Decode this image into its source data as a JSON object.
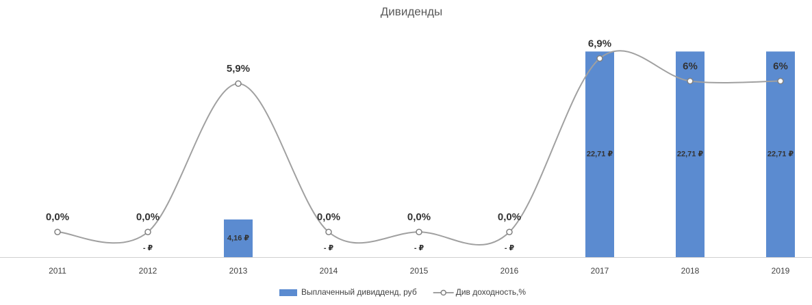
{
  "chart_data": {
    "type": "bar",
    "title": "Дивиденды",
    "categories": [
      "2011",
      "2012",
      "2013",
      "2014",
      "2015",
      "2016",
      "2017",
      "2018",
      "2019"
    ],
    "series": [
      {
        "name": "Выплаченный дивидденд, руб",
        "type": "bar",
        "color": "#5b8bd0",
        "values": [
          null,
          0,
          4.16,
          0,
          0,
          0,
          22.71,
          22.71,
          22.71
        ],
        "value_labels": [
          null,
          "-  ₽",
          "4,16 ₽",
          "-  ₽",
          "-  ₽",
          "-  ₽",
          "22,71 ₽",
          "22,71 ₽",
          "22,71 ₽"
        ]
      },
      {
        "name": "Див доходность,%",
        "type": "line",
        "axis": "y2",
        "color": "#a0a0a0",
        "smooth": true,
        "values": [
          0.0,
          0.0,
          5.9,
          0.0,
          0.0,
          0.0,
          6.9,
          6,
          6
        ],
        "value_labels": [
          "0,0%",
          "0,0%",
          "5,9%",
          "0,0%",
          "0,0%",
          "0,0%",
          "6,9%",
          "6%",
          "6%"
        ]
      }
    ],
    "ylim": [
      0,
      25
    ],
    "y2lim": [
      -1,
      8
    ],
    "legend": "bottom"
  }
}
